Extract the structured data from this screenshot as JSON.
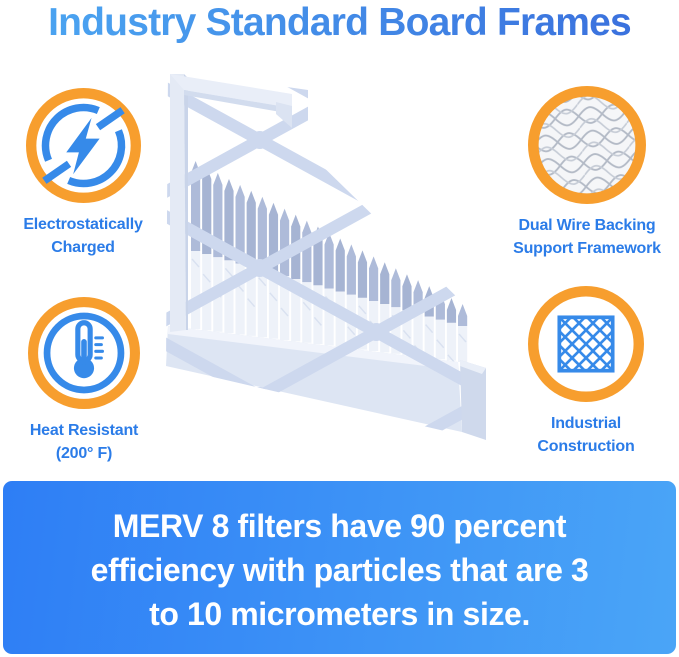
{
  "title": "Industry Standard Board Frames",
  "features": [
    {
      "name": "electrostatically-charged",
      "icon": "lightning-bolt-icon",
      "lines": [
        "Electrostatically",
        "Charged"
      ]
    },
    {
      "name": "dual-wire-backing",
      "icon": "wire-mesh-icon",
      "lines": [
        "Dual Wire Backing",
        "Support Framework"
      ]
    },
    {
      "name": "heat-resistant",
      "icon": "thermometer-icon",
      "lines": [
        "Heat Resistant",
        "(200° F)"
      ]
    },
    {
      "name": "industrial-construction",
      "icon": "diamond-lattice-icon",
      "lines": [
        "Industrial",
        "Construction"
      ]
    }
  ],
  "banner": {
    "lines": [
      "MERV 8 filters have 90 percent",
      "efficiency with particles that are 3",
      "to 10 micrometers in size."
    ]
  },
  "illustration": {
    "name": "pleated-air-filter-render"
  },
  "colors": {
    "title_blue_start": "#4aa2f0",
    "title_blue_end": "#3a70dd",
    "label_blue": "#2b7ce8",
    "ring_orange": "#f79e2e",
    "icon_blue": "#368ae9",
    "banner_start": "#2e7ef5",
    "banner_end": "#4aa5f7",
    "banner_text": "#ffffff"
  }
}
